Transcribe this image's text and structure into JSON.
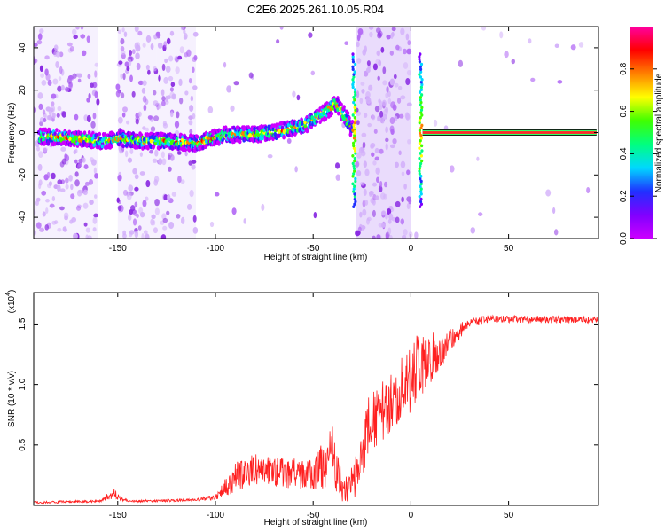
{
  "title": "C2E6.2025.261.10.05.R04",
  "colors": {
    "snr_line": "#ff2020",
    "colorbar": [
      "#cc00ff",
      "#8000ff",
      "#2030ff",
      "#00d8ff",
      "#00ff80",
      "#40ff00",
      "#ffff00",
      "#ff8000",
      "#ff0000",
      "#ff00a0"
    ]
  },
  "chart_data": [
    {
      "type": "heatmap",
      "title": "C2E6.2025.261.10.05.R04",
      "xlabel": "Height of straight line (km)",
      "ylabel": "Frequency (Hz)",
      "xlim": [
        -193,
        96
      ],
      "ylim": [
        -50,
        50
      ],
      "xticks": [
        -150,
        -100,
        -50,
        0,
        50
      ],
      "xtick_labels": [
        "-150",
        "-100",
        "-50",
        "0",
        "50"
      ],
      "yticks": [
        -40,
        -20,
        0,
        20,
        40
      ],
      "ytick_labels": [
        "-40",
        "-20",
        "0",
        "20",
        "40"
      ],
      "colorbar": {
        "label": "Normalized spectral amplitude",
        "range": [
          0,
          1
        ],
        "ticks": [
          0.0,
          0.2,
          0.4,
          0.6,
          0.8
        ],
        "tick_labels": [
          "0.0",
          "0.2",
          "0.4",
          "0.6",
          "0.8"
        ]
      },
      "ridge": [
        {
          "x": -185,
          "f": -2
        },
        {
          "x": -170,
          "f": -3
        },
        {
          "x": -158,
          "f": -4
        },
        {
          "x": -148,
          "f": -3
        },
        {
          "x": -138,
          "f": -4
        },
        {
          "x": -125,
          "f": -4
        },
        {
          "x": -110,
          "f": -5
        },
        {
          "x": -95,
          "f": -1
        },
        {
          "x": -80,
          "f": -1
        },
        {
          "x": -65,
          "f": 1
        },
        {
          "x": -55,
          "f": 3
        },
        {
          "x": -45,
          "f": 9
        },
        {
          "x": -38,
          "f": 14
        },
        {
          "x": -32,
          "f": 5
        },
        {
          "x": -29,
          "f": 0
        },
        {
          "x": 5,
          "f": 0
        },
        {
          "x": 95,
          "f": 0
        }
      ],
      "noise_bands": [
        [
          -193,
          -160
        ],
        [
          -150,
          -130
        ],
        [
          -130,
          -110
        ],
        [
          -28,
          0
        ]
      ],
      "carrier_band": {
        "x_start": 6,
        "x_end": 95,
        "f": 0
      }
    },
    {
      "type": "line",
      "xlabel": "Height of straight line (km)",
      "ylabel": "SNR (10 * v/v)",
      "y_scale_label": "(x10",
      "y_scale_exponent": "4",
      "xlim": [
        -193,
        96
      ],
      "ylim": [
        0,
        1.76
      ],
      "xticks": [
        -150,
        -100,
        -50,
        0,
        50
      ],
      "xtick_labels": [
        "-150",
        "-100",
        "-50",
        "0",
        "50"
      ],
      "yticks": [
        0.5,
        1.0,
        1.5
      ],
      "ytick_labels": [
        "0.5",
        "1.0",
        "1.5"
      ],
      "envelope": [
        {
          "x": -193,
          "base": 0.02,
          "amp": 0.02
        },
        {
          "x": -160,
          "base": 0.03,
          "amp": 0.02
        },
        {
          "x": -152,
          "base": 0.08,
          "amp": 0.08
        },
        {
          "x": -145,
          "base": 0.03,
          "amp": 0.02
        },
        {
          "x": -110,
          "base": 0.04,
          "amp": 0.02
        },
        {
          "x": -100,
          "base": 0.06,
          "amp": 0.05
        },
        {
          "x": -90,
          "base": 0.18,
          "amp": 0.25
        },
        {
          "x": -80,
          "base": 0.25,
          "amp": 0.25
        },
        {
          "x": -65,
          "base": 0.22,
          "amp": 0.25
        },
        {
          "x": -50,
          "base": 0.2,
          "amp": 0.25
        },
        {
          "x": -40,
          "base": 0.3,
          "amp": 0.55
        },
        {
          "x": -35,
          "base": 0.08,
          "amp": 0.2
        },
        {
          "x": -28,
          "base": 0.15,
          "amp": 0.3
        },
        {
          "x": -22,
          "base": 0.55,
          "amp": 0.5
        },
        {
          "x": -10,
          "base": 0.75,
          "amp": 0.5
        },
        {
          "x": 0,
          "base": 0.95,
          "amp": 0.6
        },
        {
          "x": 5,
          "base": 1.05,
          "amp": 0.6
        },
        {
          "x": 12,
          "base": 1.15,
          "amp": 0.3
        },
        {
          "x": 20,
          "base": 1.32,
          "amp": 0.2
        },
        {
          "x": 30,
          "base": 1.5,
          "amp": 0.08
        },
        {
          "x": 40,
          "base": 1.53,
          "amp": 0.06
        },
        {
          "x": 96,
          "base": 1.52,
          "amp": 0.06
        }
      ]
    }
  ]
}
